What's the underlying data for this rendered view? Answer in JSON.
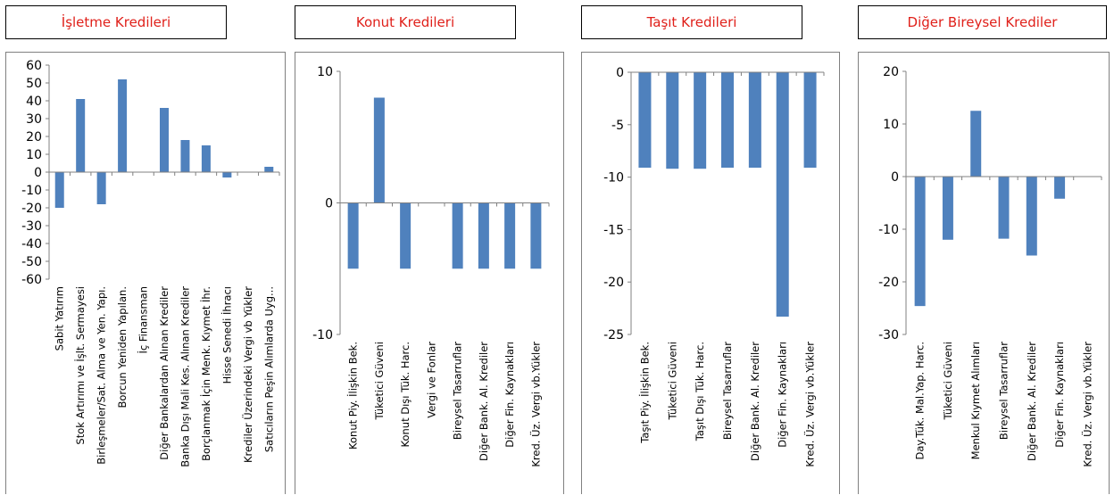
{
  "colors": {
    "bar": "#4f81bd",
    "title": "#e0201a",
    "axis": "#808080"
  },
  "chart_data": [
    {
      "type": "bar",
      "title": "İşletme Kredileri",
      "categories": [
        "Sabit Yatırım",
        "Stok Artırımı ve İşlt. Sermayesi",
        "Birleşmeler/Sat. Alma ve Yen. Yapı.",
        "Borcun Yeniden Yapılan.",
        "İç Finansman",
        "Diğer Bankalardan Alınan Krediler",
        "Banka Dışı Mali Kes. Alınan Krediler",
        "Borçlanmak İçin Menk. Kıymet İhr.",
        "Hisse Senedi İhracı",
        "Krediler Üzerindeki Vergi vb Yükler",
        "Satıcıların Peşin Alımlarda Uyg..."
      ],
      "values": [
        -20,
        41,
        -18,
        52,
        0,
        36,
        18,
        15,
        -3,
        0,
        3
      ],
      "ylim": [
        -60,
        60
      ],
      "yticks": [
        "60",
        "50",
        "40",
        "30",
        "20",
        "10",
        "0",
        "-10",
        "-20",
        "-30",
        "-40",
        "-50",
        "-60"
      ],
      "grid": false,
      "legend": "none"
    },
    {
      "type": "bar",
      "title": "Konut Kredileri",
      "categories": [
        "Konut Piy. İlişkin Bek.",
        "Tüketici Güveni",
        "Konut Dışı Tük. Harc.",
        "Vergi ve Fonlar",
        "Bireysel Tasarruflar",
        "Diğer Bank. Al. Krediler",
        "Diğer Fin. Kaynakları",
        "Kred. Üz. Vergi vb.Yükler"
      ],
      "values": [
        -5,
        8,
        -5,
        0,
        -5,
        -5,
        -5,
        -5
      ],
      "ylim": [
        -10,
        10
      ],
      "yticks": [
        "10",
        "0",
        "-10"
      ],
      "grid": false,
      "legend": "none"
    },
    {
      "type": "bar",
      "title": "Taşıt Kredileri",
      "categories": [
        "Taşıt Piy. İlişkin Bek.",
        "Tüketici Güveni",
        "Taşıt Dışı Tük. Harc.",
        "Bireysel Tasarruflar",
        "Diğer Bank. Al. Krediler",
        "Diğer Fin. Kaynakları",
        "Kred. Üz. Vergi vb.Yükler"
      ],
      "values": [
        -9.1,
        -9.2,
        -9.2,
        -9.1,
        -9.1,
        -23.3,
        -9.1
      ],
      "ylim": [
        -25,
        0
      ],
      "yticks": [
        "0",
        "-5",
        "-10",
        "-15",
        "-20",
        "-25"
      ],
      "grid": false,
      "legend": "none"
    },
    {
      "type": "bar",
      "title": "Diğer Bireysel Krediler",
      "categories": [
        "Day.Tük. Mal.Yap. Harc.",
        "Tüketici Güveni",
        "Menkul Kıymet Alımları",
        "Bireysel Tasarruflar",
        "Diğer Bank. Al. Krediler",
        "Diğer Fin. Kaynakları",
        "Kred. Üz. Vergi vb.Yükler"
      ],
      "values": [
        -24.6,
        -12,
        12.5,
        -11.8,
        -15,
        -4.2,
        0
      ],
      "ylim": [
        -30,
        20
      ],
      "yticks": [
        "20",
        "10",
        "0",
        "-10",
        "-20",
        "-30"
      ],
      "grid": false,
      "legend": "none"
    }
  ]
}
